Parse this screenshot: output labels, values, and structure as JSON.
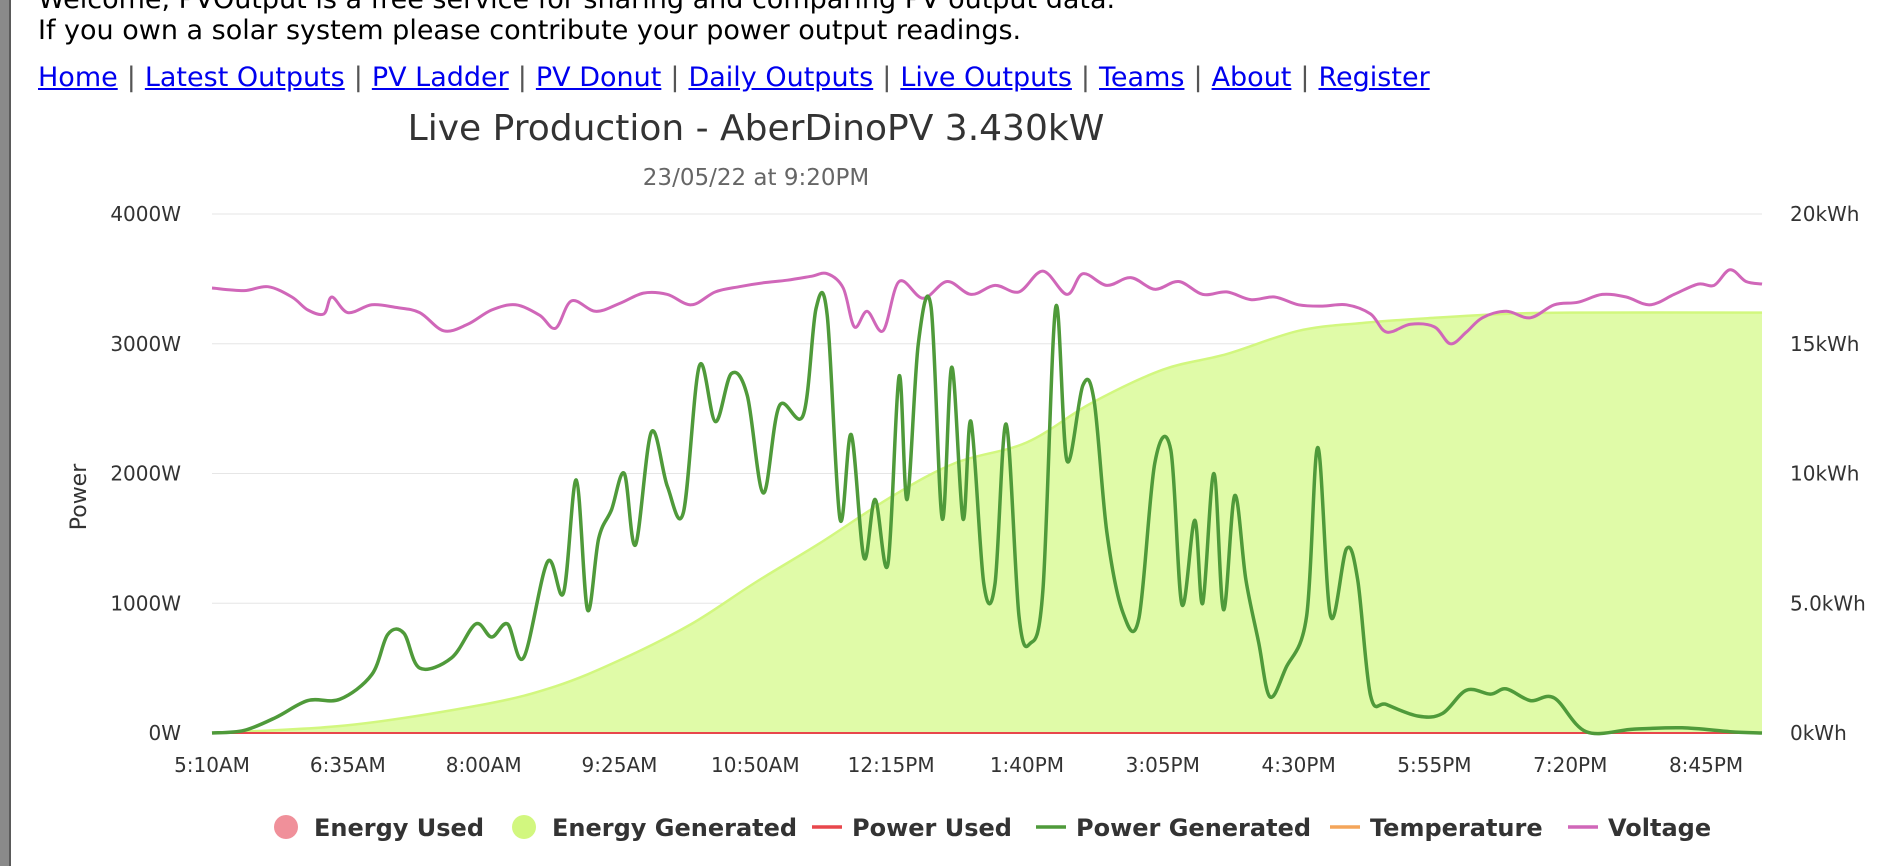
{
  "intro": {
    "line1": "Welcome, PVOutput is a free service for sharing and comparing PV output data.",
    "line2": "If you own a solar system please contribute your power output readings."
  },
  "nav": {
    "items": [
      "Home",
      "Latest Outputs",
      "PV Ladder",
      "PV Donut",
      "Daily Outputs",
      "Live Outputs",
      "Teams",
      "About",
      "Register"
    ]
  },
  "colors": {
    "energy_used": "#f0909a",
    "energy_generated_fill": "#e0fba8",
    "energy_generated_line": "#d2f77f",
    "power_used": "#e8474c",
    "power_generated": "#4f9a3a",
    "temperature": "#f4a55a",
    "voltage": "#d067b9"
  },
  "chart_data": {
    "type": "line",
    "title": "Live Production - AberDinoPV 3.430kW",
    "subtitle": "23/05/22 at 9:20PM",
    "ylabel": "Power",
    "ylim": [
      0,
      4000
    ],
    "y2lim": [
      0,
      20
    ],
    "y_ticks": [
      "0W",
      "1000W",
      "2000W",
      "3000W",
      "4000W"
    ],
    "y2_ticks": [
      "0kWh",
      "5.0kWh",
      "10kWh",
      "15kWh",
      "20kWh"
    ],
    "x_ticks": [
      "5:10AM",
      "6:35AM",
      "8:00AM",
      "9:25AM",
      "10:50AM",
      "12:15PM",
      "1:40PM",
      "3:05PM",
      "4:30PM",
      "5:55PM",
      "7:20PM",
      "8:45PM"
    ],
    "x_start": "5:10AM",
    "x_end": "9:20PM",
    "grid": true,
    "legend_position": "bottom",
    "legend": [
      "Energy Used",
      "Energy Generated",
      "Power Used",
      "Power Generated",
      "Temperature",
      "Voltage"
    ],
    "series": [
      {
        "name": "Power Generated",
        "axis": "left",
        "points": [
          [
            "5:10AM",
            0
          ],
          [
            "5:30AM",
            20
          ],
          [
            "5:50AM",
            120
          ],
          [
            "6:10AM",
            250
          ],
          [
            "6:30AM",
            260
          ],
          [
            "6:50AM",
            450
          ],
          [
            "7:00AM",
            760
          ],
          [
            "7:10AM",
            770
          ],
          [
            "7:20AM",
            500
          ],
          [
            "7:40AM",
            580
          ],
          [
            "7:55AM",
            840
          ],
          [
            "8:05AM",
            740
          ],
          [
            "8:15AM",
            840
          ],
          [
            "8:25AM",
            580
          ],
          [
            "8:40AM",
            1320
          ],
          [
            "8:50AM",
            1080
          ],
          [
            "8:58AM",
            1950
          ],
          [
            "9:05AM",
            950
          ],
          [
            "9:12AM",
            1500
          ],
          [
            "9:20AM",
            1720
          ],
          [
            "9:28AM",
            2000
          ],
          [
            "9:35AM",
            1450
          ],
          [
            "9:45AM",
            2320
          ],
          [
            "9:55AM",
            1900
          ],
          [
            "10:05AM",
            1700
          ],
          [
            "10:15AM",
            2830
          ],
          [
            "10:25AM",
            2400
          ],
          [
            "10:35AM",
            2770
          ],
          [
            "10:45AM",
            2600
          ],
          [
            "10:55AM",
            1850
          ],
          [
            "11:05AM",
            2520
          ],
          [
            "11:20AM",
            2450
          ],
          [
            "11:28AM",
            3270
          ],
          [
            "11:35AM",
            3220
          ],
          [
            "11:43AM",
            1650
          ],
          [
            "11:50AM",
            2300
          ],
          [
            "11:58AM",
            1350
          ],
          [
            "12:05PM",
            1800
          ],
          [
            "12:13PM",
            1300
          ],
          [
            "12:20PM",
            2750
          ],
          [
            "12:25PM",
            1800
          ],
          [
            "12:32PM",
            3000
          ],
          [
            "12:40PM",
            3280
          ],
          [
            "12:47PM",
            1650
          ],
          [
            "12:53PM",
            2820
          ],
          [
            "13:00PM",
            1650
          ],
          [
            "13:05PM",
            2400
          ],
          [
            "13:13PM",
            1150
          ],
          [
            "13:20PM",
            1150
          ],
          [
            "13:27PM",
            2380
          ],
          [
            "13:35PM",
            900
          ],
          [
            "13:42PM",
            690
          ],
          [
            "13:50PM",
            1100
          ],
          [
            "13:58PM",
            3280
          ],
          [
            "14:05PM",
            2100
          ],
          [
            "14:15PM",
            2680
          ],
          [
            "14:22PM",
            2560
          ],
          [
            "14:30PM",
            1550
          ],
          [
            "14:40PM",
            930
          ],
          [
            "14:50PM",
            880
          ],
          [
            "15:00PM",
            2080
          ],
          [
            "15:10PM",
            2180
          ],
          [
            "15:17PM",
            990
          ],
          [
            "15:25PM",
            1640
          ],
          [
            "15:30PM",
            1000
          ],
          [
            "15:37PM",
            2000
          ],
          [
            "15:43PM",
            950
          ],
          [
            "15:50PM",
            1830
          ],
          [
            "15:57PM",
            1180
          ],
          [
            "16:05PM",
            700
          ],
          [
            "16:12PM",
            280
          ],
          [
            "16:22PM",
            500
          ],
          [
            "16:35PM",
            900
          ],
          [
            "16:42PM",
            2200
          ],
          [
            "16:50PM",
            900
          ],
          [
            "17:00PM",
            1420
          ],
          [
            "17:07PM",
            1180
          ],
          [
            "17:15PM",
            290
          ],
          [
            "17:25PM",
            220
          ],
          [
            "17:45PM",
            130
          ],
          [
            "18:00PM",
            150
          ],
          [
            "18:15PM",
            330
          ],
          [
            "18:30PM",
            300
          ],
          [
            "18:40PM",
            340
          ],
          [
            "18:55PM",
            250
          ],
          [
            "19:10PM",
            270
          ],
          [
            "19:30PM",
            10
          ],
          [
            "20:00PM",
            30
          ],
          [
            "20:30PM",
            40
          ],
          [
            "21:00PM",
            10
          ],
          [
            "21:20PM",
            0
          ]
        ]
      },
      {
        "name": "Energy Generated",
        "axis": "right",
        "points": [
          [
            "5:10AM",
            0
          ],
          [
            "6:35AM",
            0.3
          ],
          [
            "8:00AM",
            1.1
          ],
          [
            "8:45AM",
            1.8
          ],
          [
            "9:25AM",
            2.8
          ],
          [
            "10:10AM",
            4.2
          ],
          [
            "10:50AM",
            5.8
          ],
          [
            "11:30AM",
            7.3
          ],
          [
            "12:15PM",
            9.1
          ],
          [
            "12:55PM",
            10.4
          ],
          [
            "1:40PM",
            11.2
          ],
          [
            "2:20PM",
            12.7
          ],
          [
            "3:05PM",
            14.0
          ],
          [
            "3:45PM",
            14.6
          ],
          [
            "4:30PM",
            15.5
          ],
          [
            "5:10PM",
            15.8
          ],
          [
            "5:55PM",
            16.0
          ],
          [
            "6:40PM",
            16.15
          ],
          [
            "7:20PM",
            16.2
          ],
          [
            "9:20PM",
            16.2
          ]
        ]
      },
      {
        "name": "Voltage",
        "axis": "left",
        "points": [
          [
            "5:10AM",
            3430
          ],
          [
            "5:30AM",
            3410
          ],
          [
            "5:45AM",
            3440
          ],
          [
            "6:00AM",
            3360
          ],
          [
            "6:10AM",
            3260
          ],
          [
            "6:20AM",
            3230
          ],
          [
            "6:25AM",
            3360
          ],
          [
            "6:35AM",
            3240
          ],
          [
            "6:50AM",
            3300
          ],
          [
            "7:05AM",
            3280
          ],
          [
            "7:20AM",
            3240
          ],
          [
            "7:35AM",
            3100
          ],
          [
            "7:50AM",
            3150
          ],
          [
            "8:05AM",
            3260
          ],
          [
            "8:20AM",
            3300
          ],
          [
            "8:35AM",
            3220
          ],
          [
            "8:45AM",
            3120
          ],
          [
            "8:55AM",
            3330
          ],
          [
            "9:10AM",
            3250
          ],
          [
            "9:25AM",
            3310
          ],
          [
            "9:40AM",
            3390
          ],
          [
            "9:55AM",
            3380
          ],
          [
            "10:10AM",
            3300
          ],
          [
            "10:25AM",
            3400
          ],
          [
            "10:40AM",
            3440
          ],
          [
            "10:55AM",
            3470
          ],
          [
            "11:10AM",
            3490
          ],
          [
            "11:25AM",
            3520
          ],
          [
            "11:35AM",
            3540
          ],
          [
            "11:45AM",
            3430
          ],
          [
            "11:52AM",
            3130
          ],
          [
            "12:00PM",
            3250
          ],
          [
            "12:10PM",
            3100
          ],
          [
            "12:20PM",
            3480
          ],
          [
            "12:35PM",
            3350
          ],
          [
            "12:50PM",
            3480
          ],
          [
            "13:05PM",
            3380
          ],
          [
            "13:20PM",
            3450
          ],
          [
            "13:35PM",
            3400
          ],
          [
            "13:50PM",
            3560
          ],
          [
            "14:05PM",
            3380
          ],
          [
            "14:15PM",
            3540
          ],
          [
            "14:30PM",
            3450
          ],
          [
            "14:45PM",
            3510
          ],
          [
            "15:00PM",
            3420
          ],
          [
            "15:15PM",
            3480
          ],
          [
            "15:30PM",
            3380
          ],
          [
            "15:45PM",
            3400
          ],
          [
            "16:00PM",
            3340
          ],
          [
            "16:15PM",
            3360
          ],
          [
            "16:30PM",
            3300
          ],
          [
            "16:45PM",
            3290
          ],
          [
            "17:00PM",
            3300
          ],
          [
            "17:15PM",
            3230
          ],
          [
            "17:25PM",
            3090
          ],
          [
            "17:40PM",
            3150
          ],
          [
            "17:55PM",
            3130
          ],
          [
            "18:05PM",
            3000
          ],
          [
            "18:15PM",
            3090
          ],
          [
            "18:25PM",
            3200
          ],
          [
            "18:40PM",
            3250
          ],
          [
            "18:55PM",
            3200
          ],
          [
            "19:10PM",
            3300
          ],
          [
            "19:25PM",
            3320
          ],
          [
            "19:40PM",
            3380
          ],
          [
            "19:55PM",
            3360
          ],
          [
            "20:10PM",
            3300
          ],
          [
            "20:25PM",
            3380
          ],
          [
            "20:40PM",
            3460
          ],
          [
            "20:50PM",
            3450
          ],
          [
            "21:00PM",
            3570
          ],
          [
            "21:10PM",
            3480
          ],
          [
            "21:20PM",
            3460
          ]
        ]
      },
      {
        "name": "Power Used",
        "axis": "left",
        "points": [
          [
            "5:10AM",
            0
          ],
          [
            "9:20PM",
            0
          ]
        ]
      }
    ]
  }
}
